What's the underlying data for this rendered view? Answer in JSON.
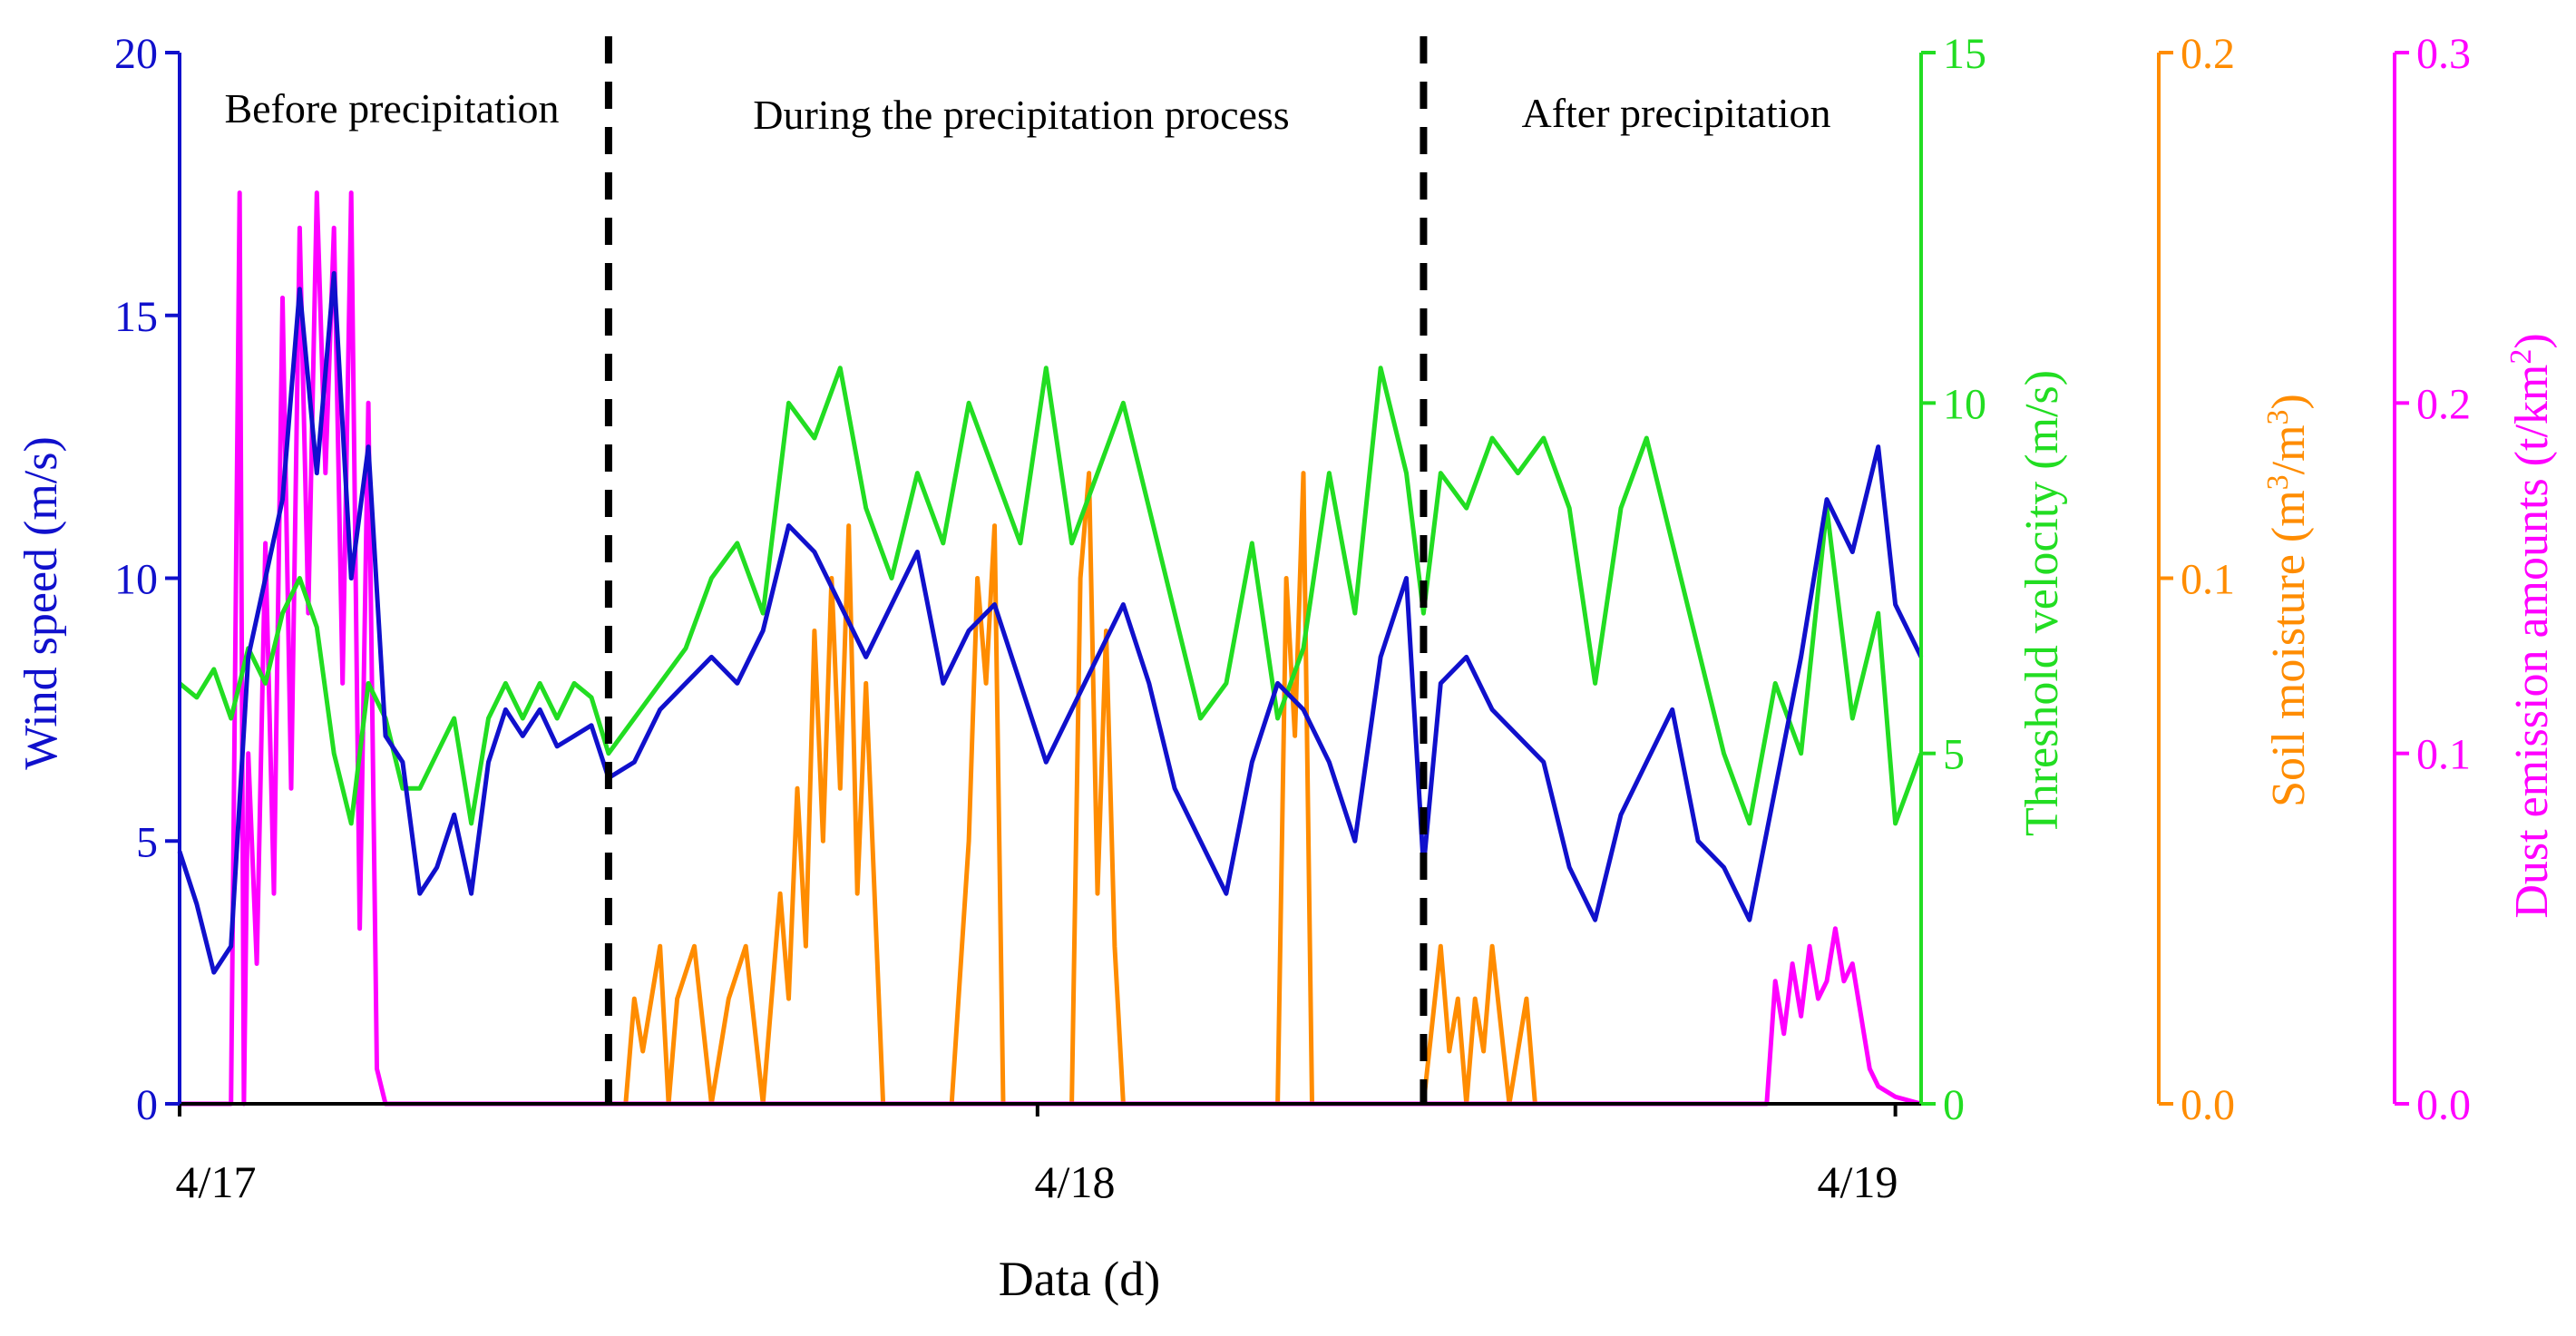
{
  "chart_data": {
    "type": "line",
    "xlabel": "Data (d)",
    "x_ticks": [
      {
        "label": "4/17",
        "value": 0
      },
      {
        "label": "4/18",
        "value": 1
      },
      {
        "label": "4/19",
        "value": 2
      }
    ],
    "x_range": [
      0,
      2.03
    ],
    "periods": [
      {
        "label": "Before precipitation",
        "start": 0,
        "end": 0.5
      },
      {
        "label": "During the precipitation process",
        "start": 0.5,
        "end": 1.45
      },
      {
        "label": "After precipitation",
        "start": 1.45,
        "end": 2.03
      }
    ],
    "boundaries": [
      0.5,
      1.45
    ],
    "axes": [
      {
        "id": "wind",
        "label": "Wind speed (m/s)",
        "min": 0,
        "max": 20,
        "ticks": [
          0,
          5,
          10,
          15,
          20
        ],
        "tick_labels": [
          "0",
          "5",
          "10",
          "15",
          "20"
        ],
        "color": "#1010cc",
        "side": "left"
      },
      {
        "id": "thr",
        "label": "Threshold velocity (m/s)",
        "min": 0,
        "max": 15,
        "ticks": [
          0,
          5,
          10,
          15
        ],
        "tick_labels": [
          "0",
          "5",
          "10",
          "15"
        ],
        "color": "#22dd22",
        "side": "right"
      },
      {
        "id": "soil",
        "label_main": "Soil moisture (m",
        "label_sup1": "3",
        "label_mid": "/m",
        "label_sup2": "3",
        "label_end": ")",
        "min": 0,
        "max": 0.2,
        "ticks": [
          0,
          0.1,
          0.2
        ],
        "tick_labels": [
          "0.0",
          "0.1",
          "0.2"
        ],
        "color": "#ff8c00",
        "side": "right"
      },
      {
        "id": "dust",
        "label_main": "Dust emission amounts (t/km",
        "label_sup": "2",
        "label_end": ")",
        "min": 0,
        "max": 0.3,
        "ticks": [
          0,
          0.1,
          0.2,
          0.3
        ],
        "tick_labels": [
          "0.0",
          "0.1",
          "0.2",
          "0.3"
        ],
        "color": "#ff00ff",
        "side": "right"
      }
    ],
    "series": [
      {
        "name": "Wind speed",
        "axis": "wind",
        "color": "#1010cc",
        "x": [
          0,
          0.02,
          0.04,
          0.06,
          0.08,
          0.1,
          0.12,
          0.14,
          0.16,
          0.18,
          0.2,
          0.22,
          0.24,
          0.26,
          0.28,
          0.3,
          0.32,
          0.34,
          0.36,
          0.38,
          0.4,
          0.42,
          0.44,
          0.46,
          0.48,
          0.5,
          0.53,
          0.56,
          0.59,
          0.62,
          0.65,
          0.68,
          0.71,
          0.74,
          0.77,
          0.8,
          0.83,
          0.86,
          0.89,
          0.92,
          0.95,
          0.98,
          1.01,
          1.04,
          1.07,
          1.1,
          1.13,
          1.16,
          1.19,
          1.22,
          1.25,
          1.28,
          1.31,
          1.34,
          1.37,
          1.4,
          1.43,
          1.45,
          1.47,
          1.5,
          1.53,
          1.56,
          1.59,
          1.62,
          1.65,
          1.68,
          1.71,
          1.74,
          1.77,
          1.8,
          1.83,
          1.86,
          1.89,
          1.92,
          1.95,
          1.98,
          2.0,
          2.03
        ],
        "values": [
          4.8,
          3.8,
          2.5,
          3.0,
          8.5,
          10.0,
          11.5,
          15.5,
          12.0,
          15.8,
          10.0,
          12.5,
          7.0,
          6.5,
          4.0,
          4.5,
          5.5,
          4.0,
          6.5,
          7.5,
          7.0,
          7.5,
          6.8,
          7.0,
          7.2,
          6.2,
          6.5,
          7.5,
          8.0,
          8.5,
          8.0,
          9.0,
          11.0,
          10.5,
          9.5,
          8.5,
          9.5,
          10.5,
          8.0,
          9.0,
          9.5,
          8.0,
          6.5,
          7.5,
          8.5,
          9.5,
          8.0,
          6.0,
          5.0,
          4.0,
          6.5,
          8.0,
          7.5,
          6.5,
          5.0,
          8.5,
          10.0,
          4.5,
          8.0,
          8.5,
          7.5,
          7.0,
          6.5,
          4.5,
          3.5,
          5.5,
          6.5,
          7.5,
          5.0,
          4.5,
          3.5,
          6.0,
          8.5,
          11.5,
          10.5,
          12.5,
          9.5,
          8.5
        ]
      },
      {
        "name": "Threshold velocity",
        "axis": "thr",
        "color": "#22dd22",
        "x": [
          0,
          0.02,
          0.04,
          0.06,
          0.08,
          0.1,
          0.12,
          0.14,
          0.16,
          0.18,
          0.2,
          0.22,
          0.24,
          0.26,
          0.28,
          0.3,
          0.32,
          0.34,
          0.36,
          0.38,
          0.4,
          0.42,
          0.44,
          0.46,
          0.48,
          0.5,
          0.53,
          0.56,
          0.59,
          0.62,
          0.65,
          0.68,
          0.71,
          0.74,
          0.77,
          0.8,
          0.83,
          0.86,
          0.89,
          0.92,
          0.95,
          0.98,
          1.01,
          1.04,
          1.07,
          1.1,
          1.13,
          1.16,
          1.19,
          1.22,
          1.25,
          1.28,
          1.31,
          1.34,
          1.37,
          1.4,
          1.43,
          1.45,
          1.47,
          1.5,
          1.53,
          1.56,
          1.59,
          1.62,
          1.65,
          1.68,
          1.71,
          1.74,
          1.77,
          1.8,
          1.83,
          1.86,
          1.89,
          1.92,
          1.95,
          1.98,
          2.0,
          2.03
        ],
        "values": [
          6.0,
          5.8,
          6.2,
          5.5,
          6.5,
          6.0,
          7.0,
          7.5,
          6.8,
          5.0,
          4.0,
          6.0,
          5.5,
          4.5,
          4.5,
          5.0,
          5.5,
          4.0,
          5.5,
          6.0,
          5.5,
          6.0,
          5.5,
          6.0,
          5.8,
          5.0,
          5.5,
          6.0,
          6.5,
          7.5,
          8.0,
          7.0,
          10.0,
          9.5,
          10.5,
          8.5,
          7.5,
          9.0,
          8.0,
          10.0,
          9.0,
          8.0,
          10.5,
          8.0,
          9.0,
          10.0,
          8.5,
          7.0,
          5.5,
          6.0,
          8.0,
          5.5,
          6.5,
          9.0,
          7.0,
          10.5,
          9.0,
          7.0,
          9.0,
          8.5,
          9.5,
          9.0,
          9.5,
          8.5,
          6.0,
          8.5,
          9.5,
          8.0,
          6.5,
          5.0,
          4.0,
          6.0,
          5.0,
          8.5,
          5.5,
          7.0,
          4.0,
          5.0
        ]
      },
      {
        "name": "Soil moisture",
        "axis": "soil",
        "color": "#ff8c00",
        "x": [
          0.52,
          0.53,
          0.54,
          0.56,
          0.57,
          0.58,
          0.6,
          0.62,
          0.64,
          0.66,
          0.68,
          0.7,
          0.71,
          0.72,
          0.73,
          0.74,
          0.75,
          0.76,
          0.77,
          0.78,
          0.79,
          0.8,
          0.82,
          0.84,
          0.86,
          0.88,
          0.9,
          0.92,
          0.93,
          0.94,
          0.95,
          0.96,
          0.98,
          1.0,
          1.02,
          1.04,
          1.05,
          1.06,
          1.07,
          1.08,
          1.09,
          1.1,
          1.12,
          1.14,
          1.16,
          1.18,
          1.2,
          1.22,
          1.24,
          1.26,
          1.28,
          1.29,
          1.3,
          1.31,
          1.32,
          1.34,
          1.36,
          1.38,
          1.4,
          1.42,
          1.45,
          1.47,
          1.48,
          1.49,
          1.5,
          1.51,
          1.52,
          1.53,
          1.55,
          1.57,
          1.58,
          1.6,
          1.62
        ],
        "values": [
          0,
          0.02,
          0.01,
          0.03,
          0,
          0.02,
          0.03,
          0,
          0.02,
          0.03,
          0,
          0.04,
          0.02,
          0.06,
          0.03,
          0.09,
          0.05,
          0.1,
          0.06,
          0.11,
          0.04,
          0.08,
          0,
          0,
          0,
          0,
          0,
          0.05,
          0.1,
          0.08,
          0.11,
          0,
          0,
          0,
          0,
          0,
          0.1,
          0.12,
          0.04,
          0.09,
          0.03,
          0,
          0,
          0,
          0,
          0,
          0,
          0,
          0,
          0,
          0,
          0.1,
          0.07,
          0.12,
          0,
          0,
          0,
          0,
          0,
          0,
          0,
          0.03,
          0.01,
          0.02,
          0,
          0.02,
          0.01,
          0.03,
          0,
          0.02,
          0,
          0,
          0
        ]
      },
      {
        "name": "Dust emission amounts",
        "axis": "dust",
        "color": "#ff00ff",
        "x": [
          0,
          0.06,
          0.07,
          0.075,
          0.08,
          0.09,
          0.1,
          0.11,
          0.12,
          0.13,
          0.14,
          0.15,
          0.16,
          0.17,
          0.18,
          0.19,
          0.2,
          0.21,
          0.22,
          0.23,
          0.24,
          0.25,
          1.8,
          1.85,
          1.86,
          1.87,
          1.88,
          1.89,
          1.9,
          1.91,
          1.92,
          1.93,
          1.94,
          1.95,
          1.96,
          1.97,
          1.98,
          2.0,
          2.03
        ],
        "values": [
          0,
          0,
          0.26,
          0,
          0.1,
          0.04,
          0.16,
          0.06,
          0.23,
          0.09,
          0.25,
          0.14,
          0.26,
          0.18,
          0.25,
          0.12,
          0.26,
          0.05,
          0.2,
          0.01,
          0,
          0,
          0,
          0,
          0.035,
          0.02,
          0.04,
          0.025,
          0.045,
          0.03,
          0.035,
          0.05,
          0.035,
          0.04,
          0.025,
          0.01,
          0.005,
          0.002,
          0
        ]
      }
    ]
  }
}
